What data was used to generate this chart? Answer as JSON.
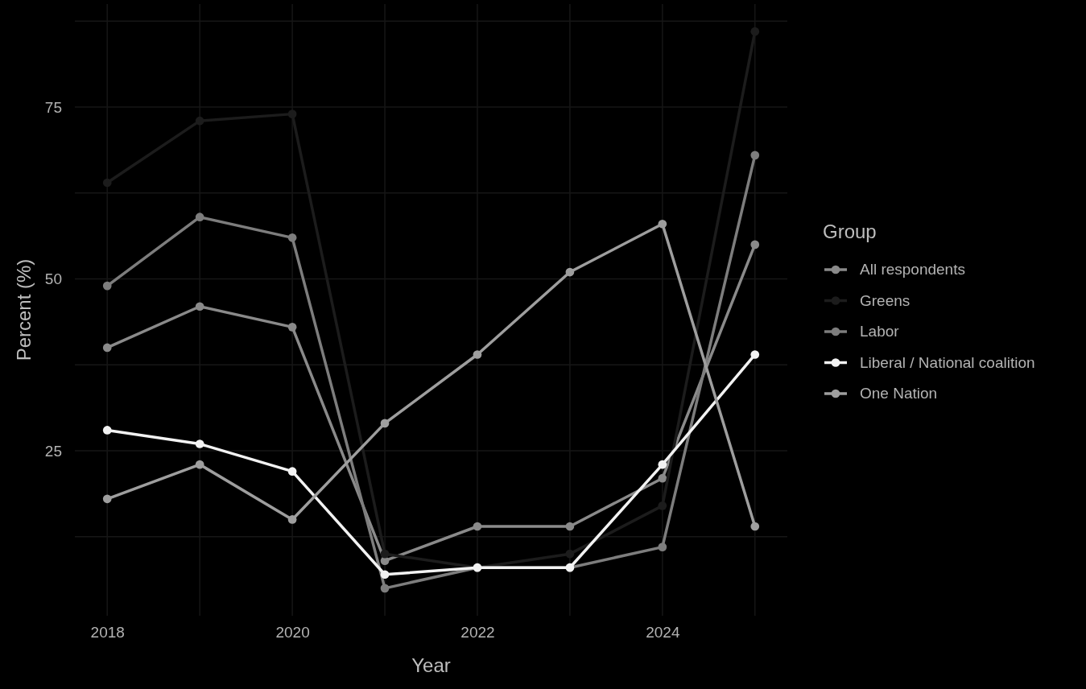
{
  "chart_data": {
    "type": "line",
    "xlabel": "Year",
    "ylabel": "Percent (%)",
    "legend_title": "Group",
    "legend": "right",
    "grid": true,
    "marker": "circle",
    "line_style": "solid",
    "x": [
      2018,
      2019,
      2020,
      2021,
      2022,
      2023,
      2024,
      2025
    ],
    "xlim": [
      2017.65,
      2025.35
    ],
    "xticks": [
      2018,
      {
        "value": 2019,
        "label": null
      },
      2020,
      {
        "value": 2021,
        "label": null
      },
      2022,
      {
        "value": 2023,
        "label": null
      },
      2024,
      {
        "value": 2025,
        "label": null
      }
    ],
    "ylim": [
      1,
      90
    ],
    "yticks": [
      {
        "value": 12.5,
        "label": null
      },
      25,
      {
        "value": 37.5,
        "label": null
      },
      50,
      {
        "value": 62.5,
        "label": null
      },
      75,
      {
        "value": 87.5,
        "label": null
      }
    ],
    "series": [
      {
        "name": "All respondents",
        "color": "#8a8a8a",
        "values": [
          40,
          46,
          43,
          9,
          14,
          14,
          21,
          55
        ]
      },
      {
        "name": "Greens",
        "color": "#1c1c1c",
        "values": [
          64,
          73,
          74,
          10,
          8,
          10,
          17,
          86
        ]
      },
      {
        "name": "Labor",
        "color": "#7d7d7d",
        "values": [
          49,
          59,
          56,
          5,
          8,
          8,
          11,
          68
        ]
      },
      {
        "name": "Liberal / National coalition",
        "color": "#f2f2f2",
        "values": [
          28,
          26,
          22,
          7,
          8,
          8,
          23,
          39
        ]
      },
      {
        "name": "One Nation",
        "color": "#9e9e9e",
        "values": [
          18,
          23,
          15,
          29,
          39,
          51,
          58,
          14
        ]
      }
    ]
  }
}
